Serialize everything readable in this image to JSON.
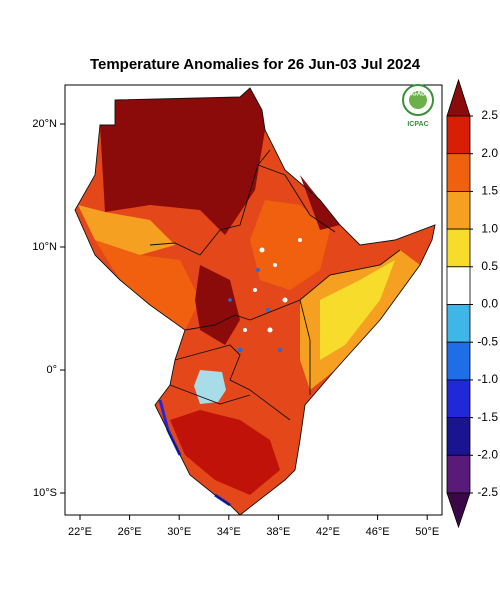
{
  "title": "Temperature Anomalies for 26 Jun-03 Jul 2024",
  "logo": {
    "top": "IGAD",
    "bottom": "ICPAC"
  },
  "map": {
    "lat_ticks": [
      {
        "value": 20,
        "label": "20°N"
      },
      {
        "value": 10,
        "label": "10°N"
      },
      {
        "value": 0,
        "label": "0°"
      },
      {
        "value": -10,
        "label": "10°S"
      }
    ],
    "lon_ticks": [
      {
        "value": 22,
        "label": "22°E"
      },
      {
        "value": 26,
        "label": "26°E"
      },
      {
        "value": 30,
        "label": "30°E"
      },
      {
        "value": 34,
        "label": "34°E"
      },
      {
        "value": 38,
        "label": "38°E"
      },
      {
        "value": 42,
        "label": "42°E"
      },
      {
        "value": 46,
        "label": "46°E"
      },
      {
        "value": 50,
        "label": "50°E"
      }
    ]
  },
  "colorbar": {
    "ticks": [
      2.5,
      {
        "value": 2,
        "label": "2.0"
      },
      1.5,
      {
        "value": 1,
        "label": "1.0"
      },
      0.5,
      {
        "value": 0,
        "label": "0.0"
      },
      -0.5,
      {
        "value": -1,
        "label": "-1.0"
      },
      -1.5,
      {
        "value": -2,
        "label": "-2.0"
      },
      -2.5
    ],
    "colors": [
      "#8b0a0a",
      "#d81e05",
      "#f0600f",
      "#f5a020",
      "#f8dc2c",
      "#ffffff",
      "#3fb5e8",
      "#1e6ee8",
      "#2028d8",
      "#1a1490",
      "#5a1a7a",
      "#3a0846"
    ]
  }
}
